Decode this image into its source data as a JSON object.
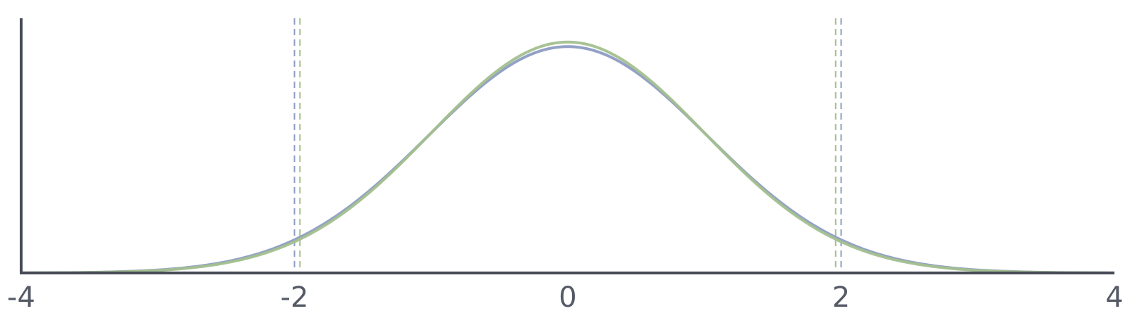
{
  "chart_data": {
    "type": "line",
    "title": "",
    "xlabel": "",
    "ylabel": "",
    "xlim": [
      -4,
      4
    ],
    "ylim": [
      0,
      0.44
    ],
    "x_ticks": [
      -4,
      -2,
      0,
      2,
      4
    ],
    "x_tick_labels": [
      "-4",
      "-2",
      "0",
      "2",
      "4"
    ],
    "grid": false,
    "legend": "none",
    "series": [
      {
        "kind": "normal-density",
        "mean": 0,
        "sd": 1.02,
        "color": "#8d9cc4",
        "x": [
          -4,
          -3.5,
          -3,
          -2.5,
          -2,
          -1.5,
          -1,
          -0.5,
          0,
          0.5,
          1,
          1.5,
          2,
          2.5,
          3,
          3.5,
          4
        ],
        "y": [
          0.0003,
          0.0011,
          0.0052,
          0.0193,
          0.0565,
          0.1321,
          0.2428,
          0.3479,
          0.3911,
          0.3479,
          0.2428,
          0.1321,
          0.0565,
          0.0193,
          0.0052,
          0.0011,
          0.0003
        ]
      },
      {
        "kind": "normal-density",
        "mean": 0,
        "sd": 1.0,
        "color": "#a3c08e",
        "x": [
          -4,
          -3.5,
          -3,
          -2.5,
          -2,
          -1.5,
          -1,
          -0.5,
          0,
          0.5,
          1,
          1.5,
          2,
          2.5,
          3,
          3.5,
          4
        ],
        "y": [
          0.0001,
          0.0009,
          0.0044,
          0.0175,
          0.054,
          0.1295,
          0.242,
          0.3521,
          0.3989,
          0.3521,
          0.242,
          0.1295,
          0.054,
          0.0175,
          0.0044,
          0.0009,
          0.0001
        ]
      }
    ],
    "reference_lines": [
      {
        "x": -2.0,
        "color": "#8d9cc4",
        "style": "dashed"
      },
      {
        "x": -1.96,
        "color": "#a3c08e",
        "style": "dashed"
      },
      {
        "x": 1.96,
        "color": "#a3c08e",
        "style": "dashed"
      },
      {
        "x": 2.0,
        "color": "#8d9cc4",
        "style": "dashed"
      }
    ],
    "axis_color": "#474b57"
  }
}
